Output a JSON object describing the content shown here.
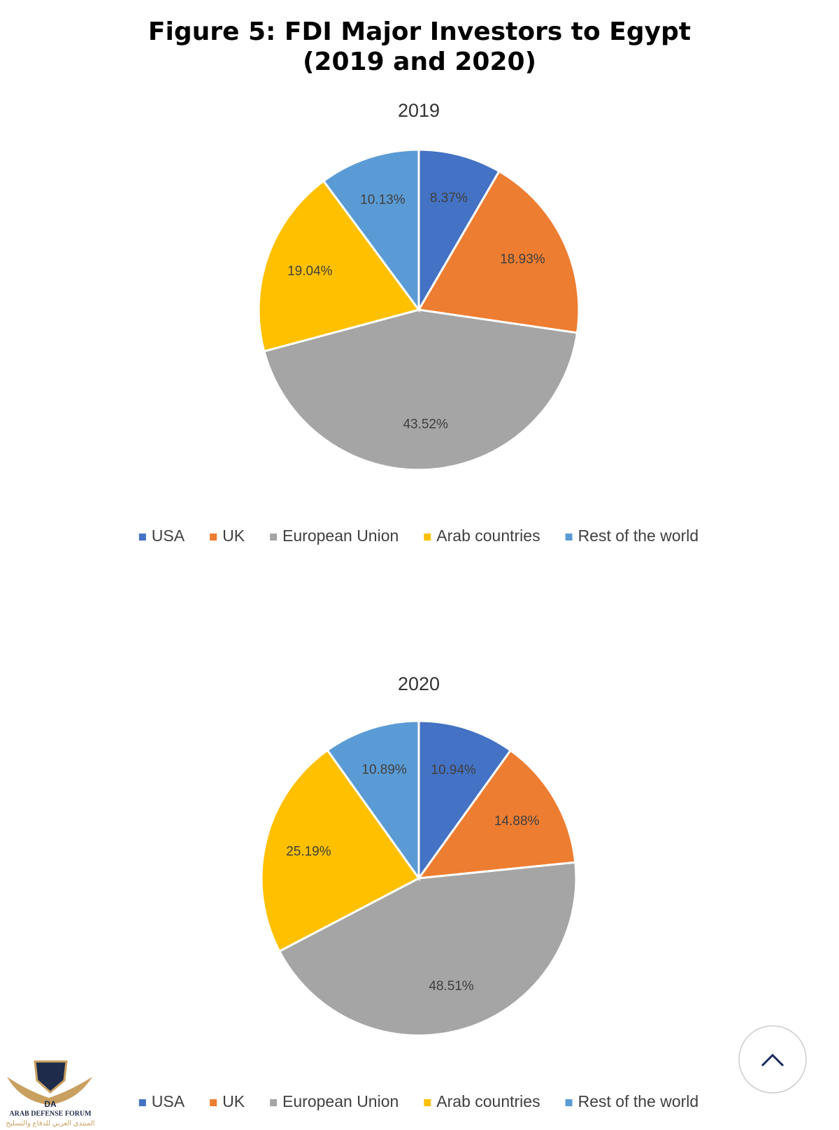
{
  "figure_title": "Figure 5: FDI Major Investors to Egypt (2019 and 2020)",
  "chart_data": [
    {
      "type": "pie",
      "title": "2019",
      "categories": [
        "USA",
        "UK",
        "European Union",
        "Arab countries",
        "Rest of the world"
      ],
      "values": [
        8.37,
        18.93,
        43.52,
        19.04,
        10.13
      ],
      "value_labels": [
        "8.37%",
        "18.93%",
        "43.52%",
        "19.04%",
        "10.13%"
      ],
      "colors": [
        "#4472c4",
        "#ed7d31",
        "#a5a5a5",
        "#ffc000",
        "#5b9bd5"
      ],
      "legend": "bottom"
    },
    {
      "type": "pie",
      "title": "2020",
      "categories": [
        "USA",
        "UK",
        "European Union",
        "Arab countries",
        "Rest of the world"
      ],
      "values": [
        10.94,
        14.88,
        48.51,
        25.19,
        10.89
      ],
      "value_labels": [
        "10.94%",
        "14.88%",
        "48.51%",
        "25.19%",
        "10.89%"
      ],
      "colors": [
        "#4472c4",
        "#ed7d31",
        "#a5a5a5",
        "#ffc000",
        "#5b9bd5"
      ],
      "legend": "bottom"
    }
  ],
  "watermark": {
    "mark": "DA",
    "name": "ARAB DEFENSE FORUM",
    "arabic": "المنتدى العربي للدفاع والتسليح"
  }
}
